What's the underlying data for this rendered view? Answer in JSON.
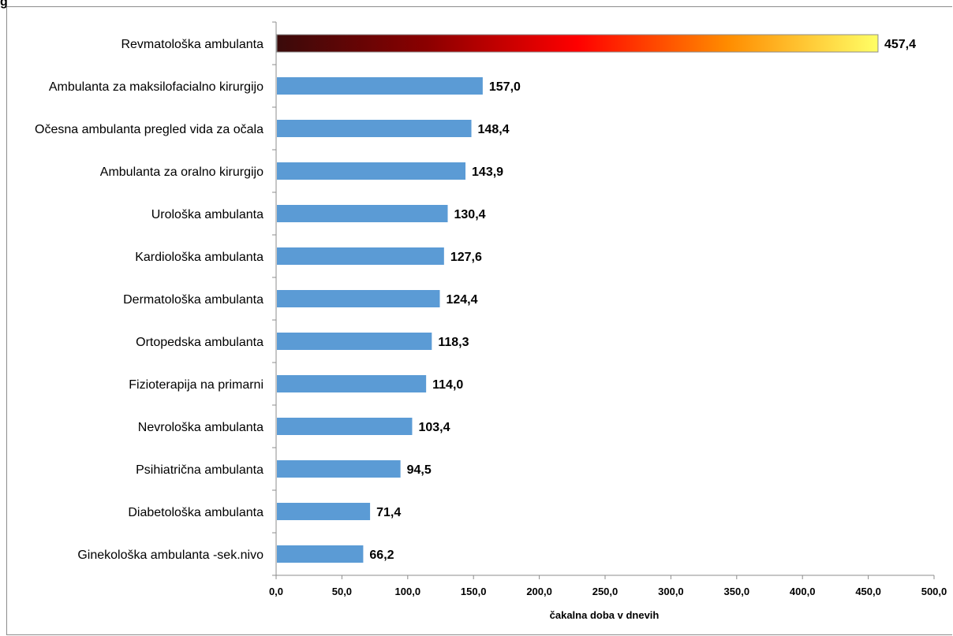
{
  "corner_glyph": "g",
  "chart_data": {
    "type": "bar",
    "orientation": "horizontal",
    "categories": [
      "Revmatološka ambulanta",
      "Ambulanta za maksilofacialno kirurgijo",
      "Očesna ambulanta  pregled vida za očala",
      "Ambulanta za oralno kirurgijo",
      "Urološka ambulanta",
      "Kardiološka ambulanta",
      "Dermatološka ambulanta",
      "Ortopedska ambulanta",
      "Fizioterapija na primarni",
      "Nevrološka ambulanta",
      "Psihiatrična ambulanta",
      "Diabetološka ambulanta",
      "Ginekološka ambulanta -sek.nivo"
    ],
    "values": [
      457.4,
      157.0,
      148.4,
      143.9,
      130.4,
      127.6,
      124.4,
      118.3,
      114.0,
      103.4,
      94.5,
      71.4,
      66.2
    ],
    "value_labels": [
      "457,4",
      "157,0",
      "148,4",
      "143,9",
      "130,4",
      "127,6",
      "124,4",
      "118,3",
      "114,0",
      "103,4",
      "94,5",
      "71,4",
      "66,2"
    ],
    "xlabel": "čakalna doba v dnevih",
    "xlim": [
      0,
      500
    ],
    "x_ticks": [
      "0,0",
      "50,0",
      "100,0",
      "150,0",
      "200,0",
      "250,0",
      "300,0",
      "350,0",
      "400,0",
      "450,0",
      "500,0"
    ],
    "grid": false,
    "legend": "none",
    "colors": {
      "bar": "#5b9bd5",
      "highlight_gradient": [
        "#3a0a0a",
        "#8b0000",
        "#ff0000",
        "#ff8c00",
        "#ffff66"
      ]
    }
  }
}
